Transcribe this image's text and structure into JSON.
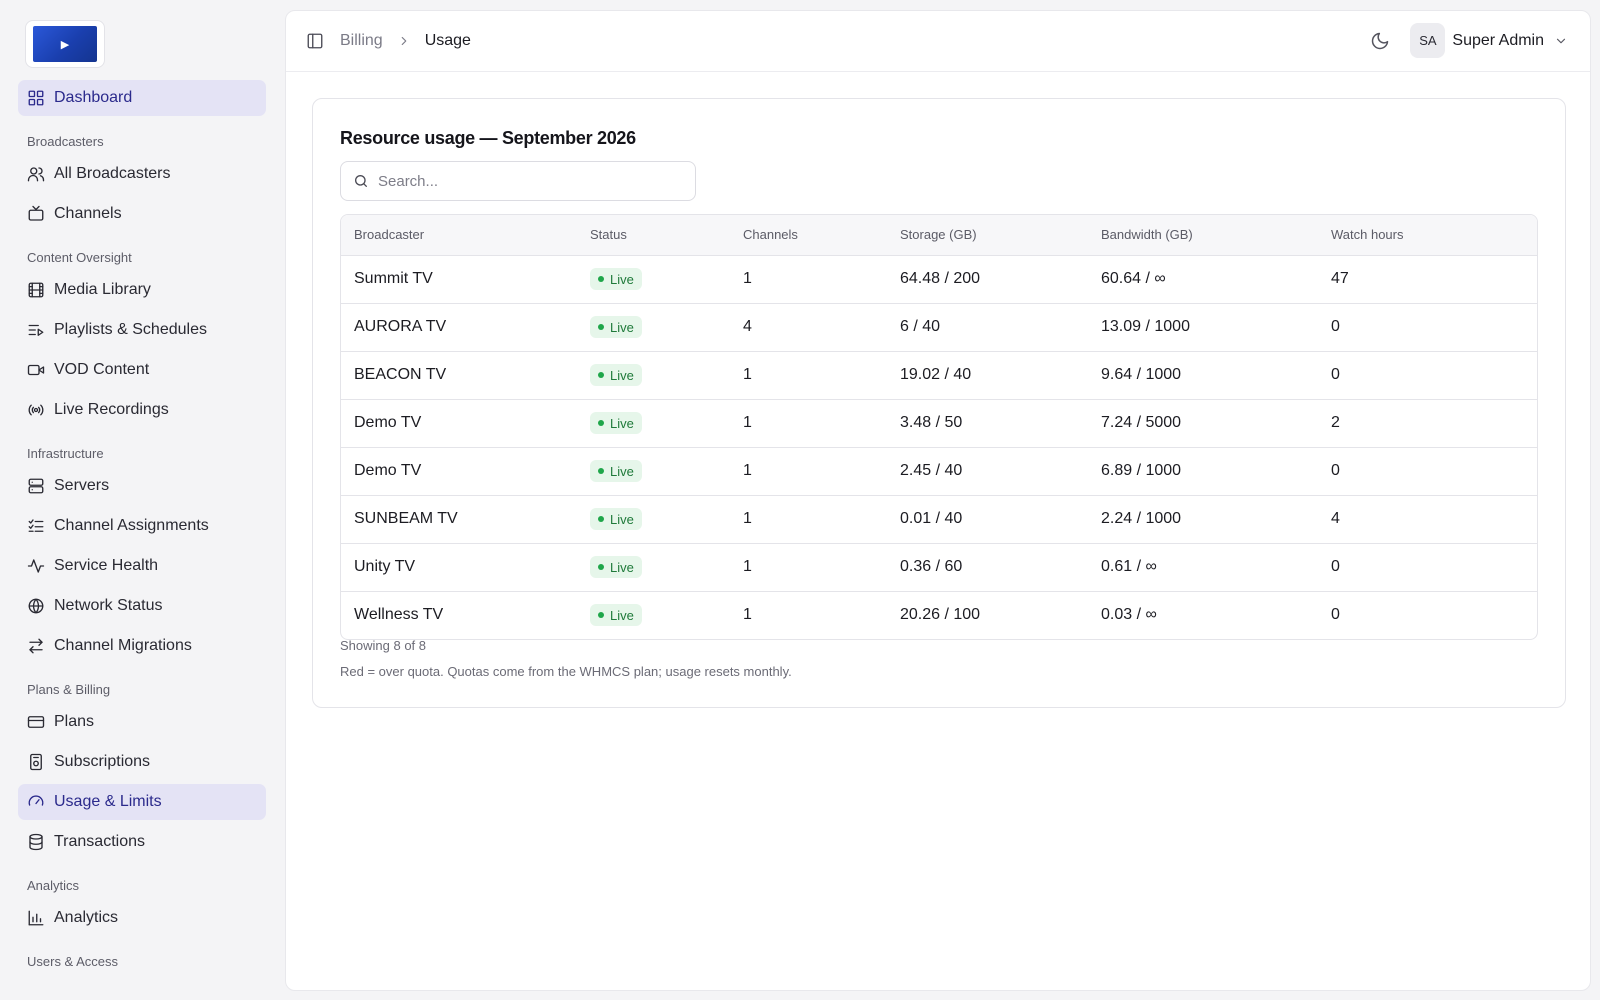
{
  "sidebar": {
    "logo_glyph": "▶",
    "items": [
      {
        "type": "item",
        "label": "Dashboard",
        "icon": "grid-icon",
        "active": true
      },
      {
        "type": "section",
        "label": "Broadcasters"
      },
      {
        "type": "item",
        "label": "All Broadcasters",
        "icon": "users-icon"
      },
      {
        "type": "item",
        "label": "Channels",
        "icon": "tv-icon"
      },
      {
        "type": "section",
        "label": "Content Oversight"
      },
      {
        "type": "item",
        "label": "Media Library",
        "icon": "film-icon"
      },
      {
        "type": "item",
        "label": "Playlists & Schedules",
        "icon": "playlist-icon"
      },
      {
        "type": "item",
        "label": "VOD Content",
        "icon": "video-icon"
      },
      {
        "type": "item",
        "label": "Live Recordings",
        "icon": "broadcast-icon"
      },
      {
        "type": "section",
        "label": "Infrastructure"
      },
      {
        "type": "item",
        "label": "Servers",
        "icon": "server-icon"
      },
      {
        "type": "item",
        "label": "Channel Assignments",
        "icon": "list-check-icon"
      },
      {
        "type": "item",
        "label": "Service Health",
        "icon": "activity-icon"
      },
      {
        "type": "item",
        "label": "Network Status",
        "icon": "globe-icon"
      },
      {
        "type": "item",
        "label": "Channel Migrations",
        "icon": "arrows-swap-icon"
      },
      {
        "type": "section",
        "label": "Plans & Billing"
      },
      {
        "type": "item",
        "label": "Plans",
        "icon": "credit-card-icon"
      },
      {
        "type": "item",
        "label": "Subscriptions",
        "icon": "subscription-icon"
      },
      {
        "type": "item",
        "label": "Usage & Limits",
        "icon": "gauge-icon",
        "active": true
      },
      {
        "type": "item",
        "label": "Transactions",
        "icon": "database-icon"
      },
      {
        "type": "section",
        "label": "Analytics"
      },
      {
        "type": "item",
        "label": "Analytics",
        "icon": "bar-chart-icon"
      },
      {
        "type": "section",
        "label": "Users & Access"
      }
    ]
  },
  "header": {
    "breadcrumb": [
      "Billing",
      "Usage"
    ],
    "user_initials": "SA",
    "user_name": "Super Admin"
  },
  "card": {
    "title": "Resource usage — September 2026",
    "search_placeholder": "Search...",
    "columns": [
      "Broadcaster",
      "Status",
      "Channels",
      "Storage (GB)",
      "Bandwidth (GB)",
      "Watch hours"
    ],
    "rows": [
      {
        "broadcaster": "Summit TV",
        "status": "Live",
        "channels": "1",
        "storage": "64.48 / 200",
        "bandwidth": "60.64 / ∞",
        "watch_hours": "47"
      },
      {
        "broadcaster": "AURORA TV",
        "status": "Live",
        "channels": "4",
        "storage": "6 / 40",
        "bandwidth": "13.09 / 1000",
        "watch_hours": "0"
      },
      {
        "broadcaster": "BEACON TV",
        "status": "Live",
        "channels": "1",
        "storage": "19.02 / 40",
        "bandwidth": "9.64 / 1000",
        "watch_hours": "0"
      },
      {
        "broadcaster": "Demo TV",
        "status": "Live",
        "channels": "1",
        "storage": "3.48 / 50",
        "bandwidth": "7.24 / 5000",
        "watch_hours": "2"
      },
      {
        "broadcaster": "Demo TV",
        "status": "Live",
        "channels": "1",
        "storage": "2.45 / 40",
        "bandwidth": "6.89 / 1000",
        "watch_hours": "0"
      },
      {
        "broadcaster": "SUNBEAM TV",
        "status": "Live",
        "channels": "1",
        "storage": "0.01 / 40",
        "bandwidth": "2.24 / 1000",
        "watch_hours": "4"
      },
      {
        "broadcaster": "Unity TV",
        "status": "Live",
        "channels": "1",
        "storage": "0.36 / 60",
        "bandwidth": "0.61 / ∞",
        "watch_hours": "0"
      },
      {
        "broadcaster": "Wellness TV",
        "status": "Live",
        "channels": "1",
        "storage": "20.26 / 100",
        "bandwidth": "0.03 / ∞",
        "watch_hours": "0"
      }
    ],
    "showing": "Showing 8 of 8",
    "note": "Red = over quota. Quotas come from the WHMCS plan; usage resets monthly."
  },
  "colors": {
    "accent": "#2b2a8c",
    "active_bg": "#e4e3f5",
    "live_badge_bg": "#e6f6ea",
    "live_badge_text": "#1f7a3a"
  }
}
